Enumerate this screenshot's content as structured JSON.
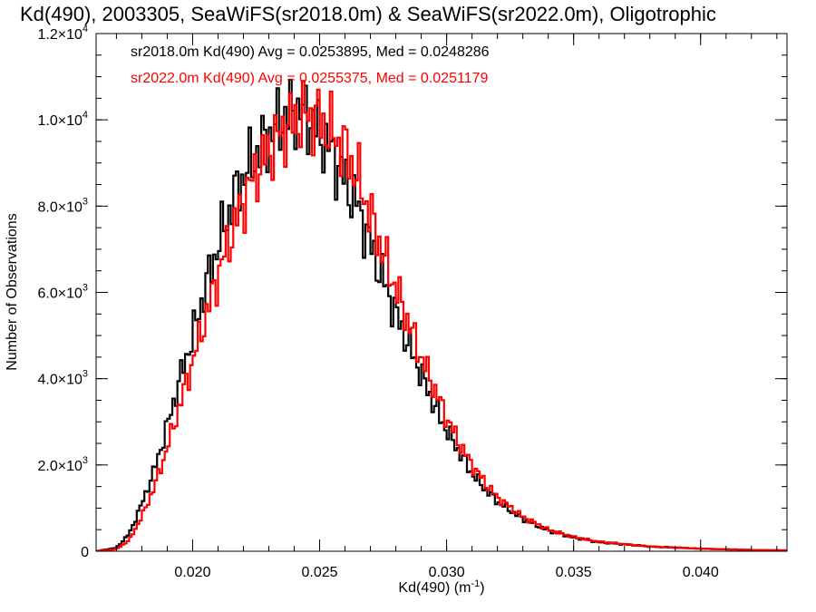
{
  "chart_data": {
    "type": "histogram",
    "title": "Kd(490), 2003305, SeaWiFS(sr2018.0m) & SeaWiFS(sr2022.0m), Oligotrophic",
    "xlabel": "Kd(490) (m",
    "xlabel_sup": "-1",
    "xlabel_close": ")",
    "ylabel": "Number of Observations",
    "xlim": [
      0.0162,
      0.0434
    ],
    "ylim": [
      0,
      12000
    ],
    "x_ticks": [
      {
        "value": 0.02,
        "label": "0.020"
      },
      {
        "value": 0.025,
        "label": "0.025"
      },
      {
        "value": 0.03,
        "label": "0.030"
      },
      {
        "value": 0.035,
        "label": "0.035"
      },
      {
        "value": 0.04,
        "label": "0.040"
      }
    ],
    "y_ticks": [
      {
        "value": 0,
        "label": "0",
        "exp": ""
      },
      {
        "value": 2000,
        "label": "2.0×10",
        "exp": "3"
      },
      {
        "value": 4000,
        "label": "4.0×10",
        "exp": "3"
      },
      {
        "value": 6000,
        "label": "6.0×10",
        "exp": "3"
      },
      {
        "value": 8000,
        "label": "8.0×10",
        "exp": "3"
      },
      {
        "value": 10000,
        "label": "1.0×10",
        "exp": "4"
      },
      {
        "value": 12000,
        "label": "1.2×10",
        "exp": "4"
      }
    ],
    "x_minor_step": 0.001,
    "y_minor_step": 500,
    "series": [
      {
        "name": "sr2018.0m Kd(490) Avg = 0.0253895, Med = 0.0248286",
        "color": "#000000",
        "profile_points": [
          [
            0.0162,
            0
          ],
          [
            0.017,
            80
          ],
          [
            0.0175,
            400
          ],
          [
            0.018,
            1100
          ],
          [
            0.0185,
            1900
          ],
          [
            0.019,
            2900
          ],
          [
            0.0195,
            4000
          ],
          [
            0.02,
            5000
          ],
          [
            0.0205,
            6100
          ],
          [
            0.021,
            7100
          ],
          [
            0.0215,
            8000
          ],
          [
            0.022,
            8700
          ],
          [
            0.0225,
            9200
          ],
          [
            0.023,
            9600
          ],
          [
            0.0235,
            10000
          ],
          [
            0.024,
            10200
          ],
          [
            0.0245,
            10100
          ],
          [
            0.025,
            9700
          ],
          [
            0.0255,
            9200
          ],
          [
            0.026,
            8600
          ],
          [
            0.0265,
            8000
          ],
          [
            0.027,
            7100
          ],
          [
            0.0275,
            6300
          ],
          [
            0.028,
            5500
          ],
          [
            0.0285,
            4800
          ],
          [
            0.029,
            4100
          ],
          [
            0.0295,
            3400
          ],
          [
            0.03,
            2800
          ],
          [
            0.0305,
            2300
          ],
          [
            0.031,
            1800
          ],
          [
            0.0315,
            1450
          ],
          [
            0.032,
            1150
          ],
          [
            0.033,
            750
          ],
          [
            0.034,
            480
          ],
          [
            0.035,
            320
          ],
          [
            0.036,
            210
          ],
          [
            0.038,
            110
          ],
          [
            0.04,
            60
          ],
          [
            0.042,
            30
          ],
          [
            0.0434,
            20
          ]
        ]
      },
      {
        "name": "sr2022.0m Kd(490) Avg = 0.0255375, Med = 0.0251179",
        "color": "#ff0000",
        "profile_points": [
          [
            0.0162,
            0
          ],
          [
            0.017,
            50
          ],
          [
            0.0175,
            250
          ],
          [
            0.018,
            800
          ],
          [
            0.0185,
            1500
          ],
          [
            0.019,
            2400
          ],
          [
            0.0195,
            3400
          ],
          [
            0.02,
            4400
          ],
          [
            0.0205,
            5400
          ],
          [
            0.021,
            6400
          ],
          [
            0.0215,
            7300
          ],
          [
            0.022,
            8100
          ],
          [
            0.0225,
            8800
          ],
          [
            0.023,
            9300
          ],
          [
            0.0235,
            9700
          ],
          [
            0.024,
            10000
          ],
          [
            0.0245,
            10100
          ],
          [
            0.025,
            10000
          ],
          [
            0.0255,
            9700
          ],
          [
            0.026,
            9300
          ],
          [
            0.0265,
            8700
          ],
          [
            0.027,
            7800
          ],
          [
            0.0275,
            6900
          ],
          [
            0.028,
            6100
          ],
          [
            0.0285,
            5300
          ],
          [
            0.029,
            4500
          ],
          [
            0.0295,
            3800
          ],
          [
            0.03,
            3100
          ],
          [
            0.0305,
            2500
          ],
          [
            0.031,
            2000
          ],
          [
            0.0315,
            1600
          ],
          [
            0.032,
            1250
          ],
          [
            0.033,
            800
          ],
          [
            0.034,
            500
          ],
          [
            0.035,
            330
          ],
          [
            0.036,
            220
          ],
          [
            0.038,
            110
          ],
          [
            0.04,
            60
          ],
          [
            0.042,
            30
          ],
          [
            0.0434,
            20
          ]
        ]
      }
    ],
    "bin_width": 0.0001
  }
}
